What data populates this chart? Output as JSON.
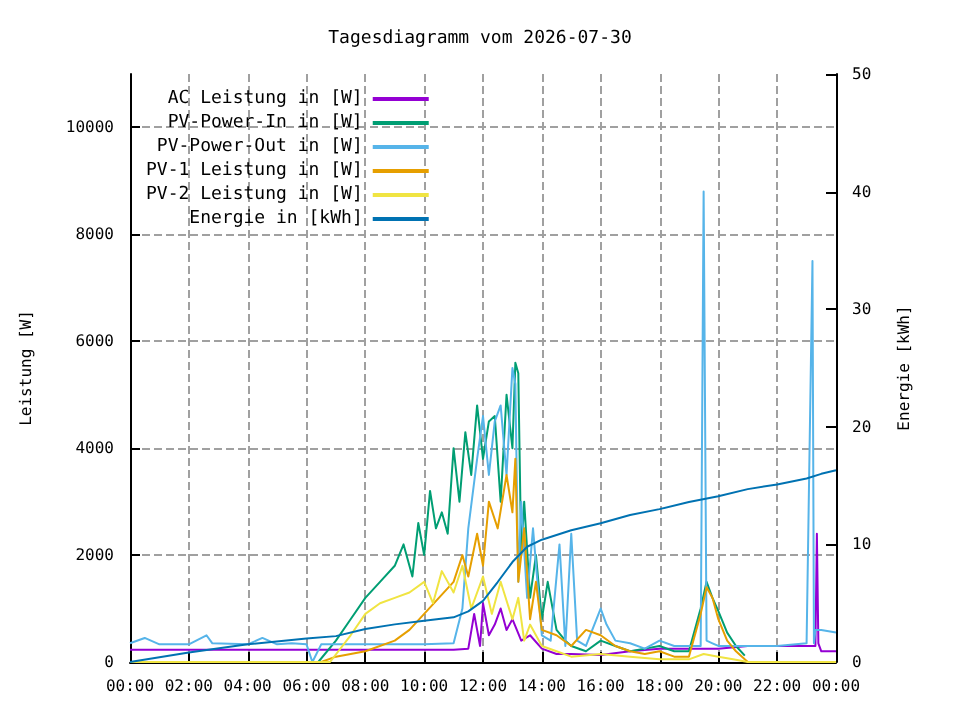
{
  "chart_data": {
    "type": "line",
    "title": "Tagesdiagramm vom 2026-07-30",
    "ylabel": "Leistung [W]",
    "y2label": "Energie [kWh]",
    "xlim": [
      0,
      24
    ],
    "xticks": [
      {
        "value": 0,
        "label": "00:00"
      },
      {
        "value": 2,
        "label": "02:00"
      },
      {
        "value": 4,
        "label": "04:00"
      },
      {
        "value": 6,
        "label": "06:00"
      },
      {
        "value": 8,
        "label": "08:00"
      },
      {
        "value": 10,
        "label": "10:00"
      },
      {
        "value": 12,
        "label": "12:00"
      },
      {
        "value": 14,
        "label": "14:00"
      },
      {
        "value": 16,
        "label": "16:00"
      },
      {
        "value": 18,
        "label": "18:00"
      },
      {
        "value": 20,
        "label": "20:00"
      },
      {
        "value": 22,
        "label": "22:00"
      },
      {
        "value": 24,
        "label": "00:00"
      }
    ],
    "ylim": [
      0,
      11000
    ],
    "yticks": [
      0,
      2000,
      4000,
      6000,
      8000,
      10000
    ],
    "y2lim": [
      0,
      50
    ],
    "y2ticks": [
      0,
      10,
      20,
      30,
      40,
      50
    ],
    "grid": true,
    "legend": "top left",
    "marker": "none",
    "line_style": "solid",
    "series": [
      {
        "name": "AC Leistung in [W]",
        "color": "#9400d3",
        "x": [
          0,
          6,
          9,
          11,
          11.5,
          11.7,
          11.9,
          12.0,
          12.2,
          12.4,
          12.6,
          12.8,
          13,
          13.3,
          13.6,
          14,
          14.5,
          15,
          16,
          17,
          18,
          19,
          19.6,
          20,
          21,
          22,
          23,
          23.3,
          23.35,
          23.4,
          23.5,
          24
        ],
        "values": [
          230,
          230,
          230,
          230,
          250,
          900,
          300,
          1100,
          500,
          700,
          1000,
          600,
          800,
          400,
          500,
          250,
          150,
          150,
          130,
          200,
          250,
          250,
          250,
          250,
          300,
          300,
          300,
          300,
          2400,
          350,
          200,
          200
        ]
      },
      {
        "name": "PV-Power-In in [W]",
        "color": "#009e73",
        "x": [
          0,
          6.4,
          7,
          7.5,
          8,
          8.5,
          9,
          9.3,
          9.6,
          9.8,
          10,
          10.2,
          10.4,
          10.6,
          10.8,
          11,
          11.2,
          11.4,
          11.6,
          11.8,
          12,
          12.2,
          12.4,
          12.6,
          12.8,
          13,
          13.1,
          13.2,
          13.3,
          13.4,
          13.6,
          13.8,
          14,
          14.2,
          14.5,
          14.8,
          15,
          15.5,
          16,
          16.5,
          17,
          17.5,
          18,
          18.5,
          19,
          19.4,
          19.6,
          19.8,
          20,
          20.3,
          20.6,
          20.9
        ],
        "values": [
          0,
          0,
          400,
          800,
          1200,
          1500,
          1800,
          2200,
          1600,
          2600,
          2000,
          3200,
          2500,
          2800,
          2400,
          4000,
          3000,
          4300,
          3500,
          4800,
          3800,
          4500,
          4600,
          3000,
          5000,
          4000,
          5600,
          5400,
          2000,
          3000,
          1200,
          2000,
          800,
          1500,
          600,
          400,
          300,
          200,
          400,
          300,
          200,
          250,
          300,
          200,
          200,
          1000,
          1500,
          1200,
          950,
          550,
          300,
          120
        ]
      },
      {
        "name": "PV-Power-Out in [W]",
        "color": "#56b4e9",
        "x": [
          0,
          0.5,
          1,
          2,
          2.6,
          2.8,
          4,
          4.5,
          5,
          5.5,
          6,
          6.2,
          6.5,
          7,
          8,
          9,
          10,
          11,
          11.3,
          11.5,
          11.8,
          12,
          12.2,
          12.4,
          12.6,
          12.8,
          13,
          13.1,
          13.2,
          13.3,
          13.5,
          13.7,
          14,
          14.3,
          14.6,
          14.8,
          15,
          15.2,
          15.5,
          16,
          16.2,
          16.5,
          17,
          17.5,
          18,
          18.5,
          19,
          19.4,
          19.5,
          19.6,
          19.8,
          20,
          21,
          22,
          23,
          23.2,
          23.25,
          23.3,
          23.5,
          24
        ],
        "values": [
          350,
          450,
          330,
          330,
          500,
          350,
          330,
          450,
          330,
          350,
          330,
          0,
          330,
          330,
          330,
          330,
          330,
          350,
          1000,
          2500,
          3800,
          4600,
          3500,
          4500,
          4800,
          3500,
          5500,
          5200,
          1500,
          3000,
          1200,
          2500,
          500,
          400,
          2200,
          300,
          2400,
          400,
          300,
          1000,
          700,
          400,
          350,
          250,
          400,
          300,
          300,
          300,
          8800,
          400,
          350,
          300,
          300,
          300,
          350,
          7500,
          350,
          600,
          600,
          550
        ]
      },
      {
        "name": "PV-1 Leistung in [W]",
        "color": "#e69f00",
        "x": [
          0,
          6.5,
          7,
          8,
          9,
          9.5,
          10,
          10.5,
          11,
          11.3,
          11.5,
          11.8,
          12,
          12.2,
          12.5,
          12.8,
          13,
          13.1,
          13.2,
          13.4,
          13.6,
          13.8,
          14,
          14.5,
          15,
          15.5,
          16,
          16.5,
          17,
          17.5,
          18,
          18.5,
          19,
          19.4,
          19.6,
          19.8,
          20,
          20.3,
          20.6,
          21,
          24
        ],
        "values": [
          0,
          0,
          100,
          200,
          400,
          600,
          900,
          1200,
          1500,
          2000,
          1600,
          2400,
          1800,
          3000,
          2500,
          3500,
          2800,
          3800,
          1500,
          2500,
          800,
          1500,
          600,
          500,
          300,
          600,
          500,
          300,
          200,
          150,
          200,
          100,
          100,
          900,
          1400,
          1200,
          800,
          400,
          200,
          0,
          0
        ]
      },
      {
        "name": "PV-2 Leistung in [W]",
        "color": "#f0e442",
        "x": [
          0,
          6.8,
          7.5,
          8,
          8.5,
          9,
          9.5,
          10,
          10.3,
          10.6,
          11,
          11.3,
          11.6,
          12,
          12.3,
          12.6,
          13,
          13.2,
          13.4,
          13.6,
          14,
          14.5,
          15,
          16,
          17,
          18,
          19,
          19.5,
          20,
          20.5,
          21,
          24
        ],
        "values": [
          0,
          0,
          500,
          900,
          1100,
          1200,
          1300,
          1500,
          1100,
          1700,
          1300,
          1800,
          1000,
          1600,
          900,
          1500,
          800,
          1200,
          400,
          700,
          300,
          200,
          100,
          150,
          100,
          50,
          50,
          150,
          100,
          50,
          0,
          0
        ]
      },
      {
        "name": "Energie in [kWh]",
        "color": "#0072b2",
        "axis": "y2",
        "x": [
          0,
          2,
          4,
          6,
          7,
          8,
          9,
          10,
          11,
          11.5,
          12,
          12.5,
          13,
          13.5,
          14,
          15,
          16,
          17,
          18,
          19,
          20,
          21,
          22,
          23,
          23.5,
          24
        ],
        "values": [
          0,
          0.8,
          1.5,
          2.0,
          2.2,
          2.8,
          3.2,
          3.5,
          3.8,
          4.3,
          5.2,
          6.8,
          8.5,
          9.8,
          10.4,
          11.2,
          11.8,
          12.5,
          13.0,
          13.6,
          14.1,
          14.7,
          15.1,
          15.6,
          16.0,
          16.3
        ]
      }
    ]
  }
}
